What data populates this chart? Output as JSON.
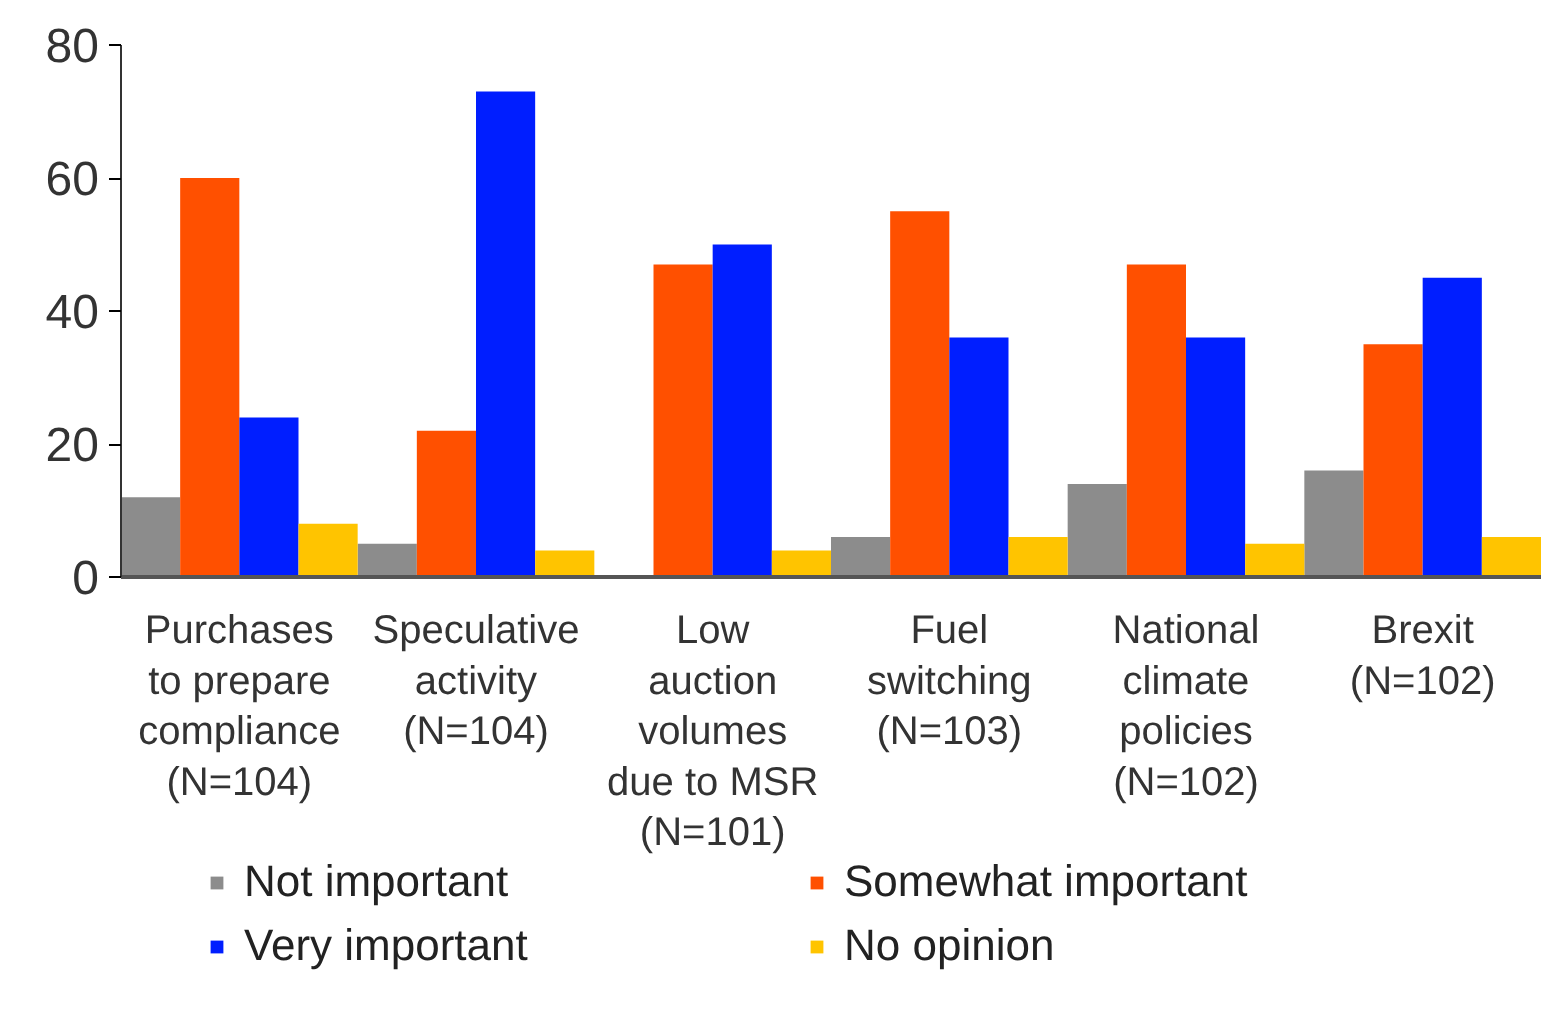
{
  "chart_data": {
    "type": "bar",
    "categories": [
      "Purchases\nto prepare\ncompliance\n(N=104)",
      "Speculative\nactivity\n(N=104)",
      "Low\nauction\nvolumes\ndue to MSR\n(N=101)",
      "Fuel\nswitching\n(N=103)",
      "National\nclimate\npolicies\n(N=102)",
      "Brexit\n(N=102)"
    ],
    "series": [
      {
        "name": "Not important",
        "color": "#8c8c8c",
        "values": [
          12,
          5,
          0,
          6,
          14,
          16
        ]
      },
      {
        "name": "Somewhat important",
        "color": "#ff5000",
        "values": [
          60,
          22,
          47,
          55,
          47,
          35
        ]
      },
      {
        "name": "Very important",
        "color": "#001eff",
        "values": [
          24,
          73,
          50,
          36,
          36,
          45
        ]
      },
      {
        "name": "No opinion",
        "color": "#ffc400",
        "values": [
          8,
          4,
          4,
          6,
          5,
          6
        ]
      }
    ],
    "ylim": [
      0,
      80
    ],
    "yticks": [
      0,
      20,
      40,
      60,
      80
    ],
    "grid": false,
    "legend": "bottom"
  }
}
